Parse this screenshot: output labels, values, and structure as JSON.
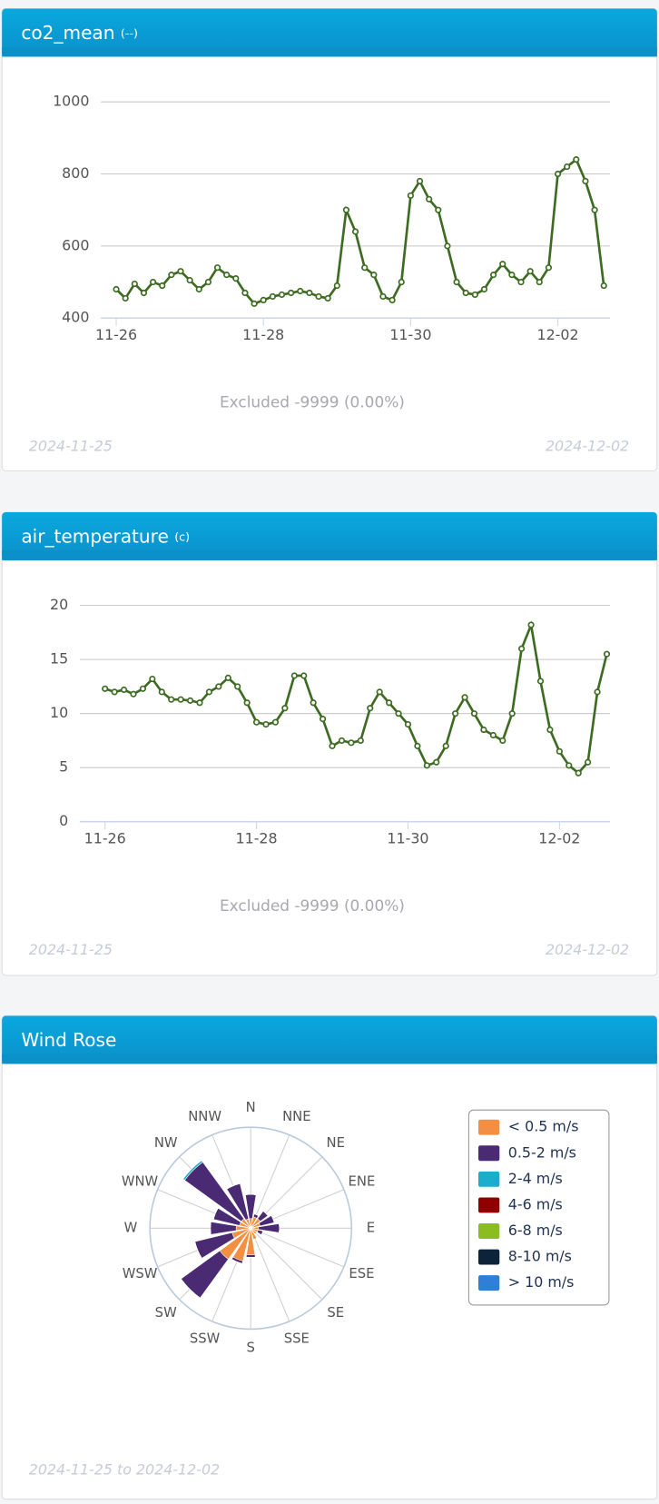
{
  "chart_data": [
    {
      "type": "line",
      "title": "co2_mean",
      "unit": "(--)",
      "color": "#3d6b22",
      "x": [
        "2024-11-26T00:00",
        "2024-11-26T03:00",
        "2024-11-26T06:00",
        "2024-11-26T09:00",
        "2024-11-26T12:00",
        "2024-11-26T15:00",
        "2024-11-26T18:00",
        "2024-11-26T21:00",
        "2024-11-27T00:00",
        "2024-11-27T03:00",
        "2024-11-27T06:00",
        "2024-11-27T09:00",
        "2024-11-27T12:00",
        "2024-11-27T15:00",
        "2024-11-27T18:00",
        "2024-11-27T21:00",
        "2024-11-28T00:00",
        "2024-11-28T03:00",
        "2024-11-28T06:00",
        "2024-11-28T09:00",
        "2024-11-28T12:00",
        "2024-11-28T15:00",
        "2024-11-28T18:00",
        "2024-11-28T21:00",
        "2024-11-29T00:00",
        "2024-11-29T03:00",
        "2024-11-29T06:00",
        "2024-11-29T09:00",
        "2024-11-29T12:00",
        "2024-11-29T15:00",
        "2024-11-29T18:00",
        "2024-11-29T21:00",
        "2024-11-30T00:00",
        "2024-11-30T03:00",
        "2024-11-30T06:00",
        "2024-11-30T09:00",
        "2024-11-30T12:00",
        "2024-11-30T15:00",
        "2024-11-30T18:00",
        "2024-11-30T21:00",
        "2024-12-01T00:00",
        "2024-12-01T03:00",
        "2024-12-01T06:00",
        "2024-12-01T09:00",
        "2024-12-01T12:00",
        "2024-12-01T15:00",
        "2024-12-01T18:00",
        "2024-12-01T21:00",
        "2024-12-02T00:00",
        "2024-12-02T03:00",
        "2024-12-02T06:00",
        "2024-12-02T09:00",
        "2024-12-02T12:00",
        "2024-12-02T15:00"
      ],
      "values": [
        480,
        455,
        495,
        470,
        500,
        490,
        520,
        530,
        505,
        480,
        500,
        540,
        520,
        510,
        470,
        440,
        450,
        460,
        465,
        470,
        475,
        470,
        460,
        455,
        490,
        700,
        640,
        540,
        520,
        460,
        450,
        500,
        740,
        780,
        730,
        700,
        600,
        500,
        470,
        465,
        480,
        520,
        550,
        520,
        500,
        530,
        500,
        540,
        800,
        820,
        840,
        780,
        700,
        490
      ],
      "xlim": [
        "2024-11-25T19:00",
        "2024-12-02T17:00"
      ],
      "xticks": [
        {
          "value": "2024-11-26T00:00",
          "label": "11-26"
        },
        {
          "value": "2024-11-28T00:00",
          "label": "11-28"
        },
        {
          "value": "2024-11-30T00:00",
          "label": "11-30"
        },
        {
          "value": "2024-12-02T00:00",
          "label": "12-02"
        }
      ],
      "ylim": [
        400,
        1000
      ],
      "yticks": [
        400,
        600,
        800,
        1000
      ],
      "grid": true,
      "note": "Excluded -9999 (0.00%)",
      "start_label": "2024-11-25",
      "end_label": "2024-12-02"
    },
    {
      "type": "line",
      "title": "air_temperature",
      "unit": "(c)",
      "color": "#3d6b22",
      "x": [
        "2024-11-26T00:00",
        "2024-11-26T03:00",
        "2024-11-26T06:00",
        "2024-11-26T09:00",
        "2024-11-26T12:00",
        "2024-11-26T15:00",
        "2024-11-26T18:00",
        "2024-11-26T21:00",
        "2024-11-27T00:00",
        "2024-11-27T03:00",
        "2024-11-27T06:00",
        "2024-11-27T09:00",
        "2024-11-27T12:00",
        "2024-11-27T15:00",
        "2024-11-27T18:00",
        "2024-11-27T21:00",
        "2024-11-28T00:00",
        "2024-11-28T03:00",
        "2024-11-28T06:00",
        "2024-11-28T09:00",
        "2024-11-28T12:00",
        "2024-11-28T15:00",
        "2024-11-28T18:00",
        "2024-11-28T21:00",
        "2024-11-29T00:00",
        "2024-11-29T03:00",
        "2024-11-29T06:00",
        "2024-11-29T09:00",
        "2024-11-29T12:00",
        "2024-11-29T15:00",
        "2024-11-29T18:00",
        "2024-11-29T21:00",
        "2024-11-30T00:00",
        "2024-11-30T03:00",
        "2024-11-30T06:00",
        "2024-11-30T09:00",
        "2024-11-30T12:00",
        "2024-11-30T15:00",
        "2024-11-30T18:00",
        "2024-11-30T21:00",
        "2024-12-01T00:00",
        "2024-12-01T03:00",
        "2024-12-01T06:00",
        "2024-12-01T09:00",
        "2024-12-01T12:00",
        "2024-12-01T15:00",
        "2024-12-01T18:00",
        "2024-12-01T21:00",
        "2024-12-02T00:00",
        "2024-12-02T03:00",
        "2024-12-02T06:00",
        "2024-12-02T09:00",
        "2024-12-02T12:00",
        "2024-12-02T15:00"
      ],
      "values": [
        12.3,
        12.0,
        12.2,
        11.8,
        12.3,
        13.2,
        12.0,
        11.3,
        11.3,
        11.2,
        11.0,
        12.0,
        12.5,
        13.3,
        12.5,
        11.0,
        9.2,
        9.0,
        9.2,
        10.5,
        13.5,
        13.5,
        11.0,
        9.5,
        7.0,
        7.5,
        7.3,
        7.5,
        10.5,
        12.0,
        11.0,
        10.0,
        9.0,
        7.0,
        5.2,
        5.5,
        7.0,
        10.0,
        11.5,
        10.0,
        8.5,
        8.0,
        7.5,
        10.0,
        16.0,
        18.2,
        13.0,
        8.5,
        6.5,
        5.2,
        4.5,
        5.5,
        12.0,
        15.5
      ],
      "xlim": [
        "2024-11-25T16:00",
        "2024-12-02T16:00"
      ],
      "xticks": [
        {
          "value": "2024-11-26T00:00",
          "label": "11-26"
        },
        {
          "value": "2024-11-28T00:00",
          "label": "11-28"
        },
        {
          "value": "2024-11-30T00:00",
          "label": "11-30"
        },
        {
          "value": "2024-12-02T00:00",
          "label": "12-02"
        }
      ],
      "ylim": [
        0,
        20
      ],
      "yticks": [
        0,
        5,
        10,
        15,
        20
      ],
      "grid": true,
      "note": "Excluded -9999 (0.00%)",
      "start_label": "2024-11-25",
      "end_label": "2024-12-02"
    },
    {
      "type": "windrose",
      "title": "Wind Rose",
      "period": "2024-11-25 to 2024-12-02",
      "directions": [
        "N",
        "NNE",
        "NE",
        "ENE",
        "E",
        "ESE",
        "SE",
        "SSE",
        "S",
        "SSW",
        "SW",
        "WSW",
        "W",
        "WNW",
        "NW",
        "NNW"
      ],
      "rlim": [
        0,
        20
      ],
      "series": [
        {
          "name": "< 0.5 m/s",
          "color": "#f28f43",
          "values": [
            1.9,
            2.3,
            2.3,
            1.9,
            1.5,
            1.5,
            1.5,
            2.3,
            5.3,
            6.7,
            7.6,
            3.8,
            2.9,
            2.3,
            2.3,
            1.9
          ]
        },
        {
          "name": "0.5-2 m/s",
          "color": "#4b2a74",
          "values": [
            4.8,
            0.6,
            1.9,
            2.9,
            4.2,
            1.0,
            0,
            0,
            0.5,
            0.5,
            9.5,
            7.6,
            5.1,
            5.3,
            13.9,
            7.2
          ]
        },
        {
          "name": "2-4 m/s",
          "color": "#1aadce",
          "values": [
            0,
            0,
            0,
            0,
            0,
            0,
            0,
            0,
            0,
            0,
            0,
            0,
            0,
            0,
            0.4,
            0
          ]
        },
        {
          "name": "4-6 m/s",
          "color": "#910000",
          "values": [
            0,
            0,
            0,
            0,
            0,
            0,
            0,
            0,
            0,
            0,
            0,
            0,
            0,
            0,
            0,
            0
          ]
        },
        {
          "name": "6-8 m/s",
          "color": "#8bbc21",
          "values": [
            0,
            0,
            0,
            0,
            0,
            0,
            0,
            0,
            0,
            0,
            0,
            0,
            0,
            0,
            0,
            0
          ]
        },
        {
          "name": "8-10 m/s",
          "color": "#0d233a",
          "values": [
            0,
            0,
            0,
            0,
            0,
            0,
            0,
            0,
            0,
            0,
            0,
            0,
            0,
            0,
            0,
            0
          ]
        },
        {
          "name": "> 10 m/s",
          "color": "#2f7ed8",
          "values": [
            0,
            0,
            0,
            0,
            0,
            0,
            0,
            0,
            0,
            0,
            0,
            0,
            0,
            0,
            0,
            0
          ]
        }
      ]
    }
  ]
}
